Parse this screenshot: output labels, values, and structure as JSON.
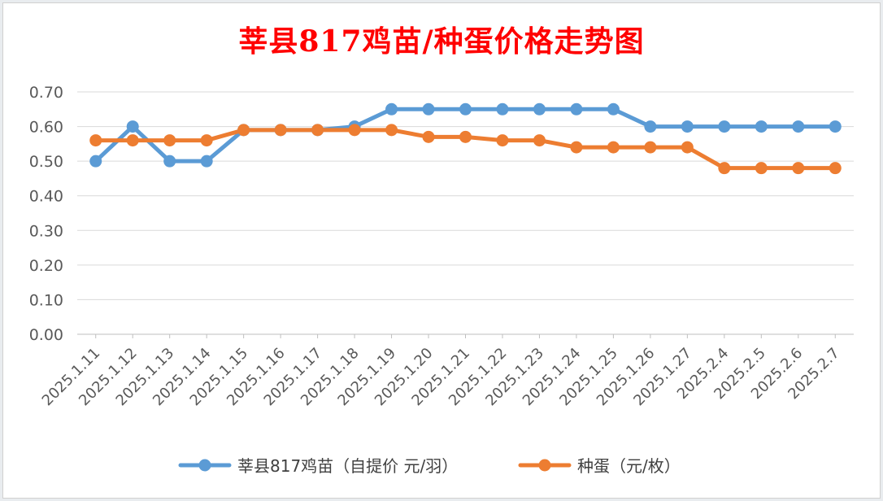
{
  "chart_data": {
    "type": "line",
    "title": "莘县817鸡苗/种蛋价格走势图",
    "categories": [
      "2025.1.11",
      "2025.1.12",
      "2025.1.13",
      "2025.1.14",
      "2025.1.15",
      "2025.1.16",
      "2025.1.17",
      "2025.1.18",
      "2025.1.19",
      "2025.1.20",
      "2025.1.21",
      "2025.1.22",
      "2025.1.23",
      "2025.1.24",
      "2025.1.25",
      "2025.1.26",
      "2025.1.27",
      "2025.2.4",
      "2025.2.5",
      "2025.2.6",
      "2025.2.7"
    ],
    "series": [
      {
        "name": "莘县817鸡苗（自提价 元/羽）",
        "color": "#5b9bd5",
        "values": [
          0.5,
          0.6,
          0.5,
          0.5,
          0.59,
          0.59,
          0.59,
          0.6,
          0.65,
          0.65,
          0.65,
          0.65,
          0.65,
          0.65,
          0.65,
          0.6,
          0.6,
          0.6,
          0.6,
          0.6,
          0.6
        ]
      },
      {
        "name": "种蛋（元/枚）",
        "color": "#ed7d31",
        "values": [
          0.56,
          0.56,
          0.56,
          0.56,
          0.59,
          0.59,
          0.59,
          0.59,
          0.59,
          0.57,
          0.57,
          0.56,
          0.56,
          0.54,
          0.54,
          0.54,
          0.54,
          0.48,
          0.48,
          0.48,
          0.48
        ]
      }
    ],
    "yticks": [
      "0.00",
      "0.10",
      "0.20",
      "0.30",
      "0.40",
      "0.50",
      "0.60",
      "0.70"
    ],
    "ylim": [
      0,
      0.7
    ],
    "grid": true,
    "legend": "bottom"
  }
}
